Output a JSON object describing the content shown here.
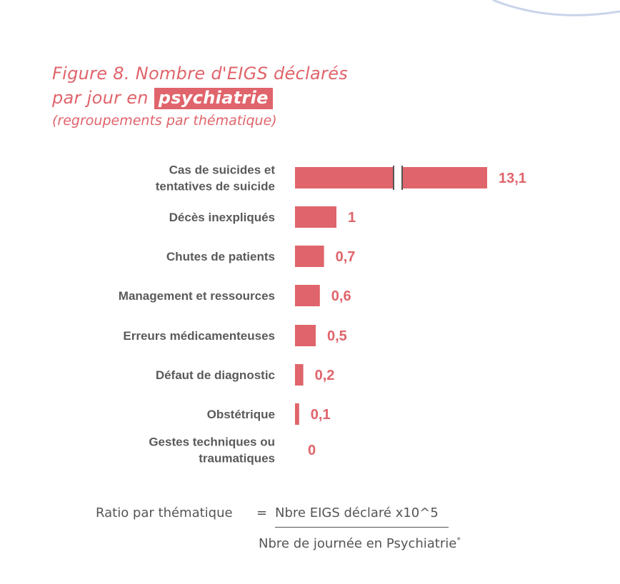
{
  "title": {
    "line1": "Figure 8. Nombre d'EIGS déclarés",
    "line2_prefix": "par jour en",
    "highlight": "psychiatrie",
    "subtitle": "(regroupements par thématique)"
  },
  "colors": {
    "accent": "#e0646b",
    "label_text": "#5a5a5a",
    "break_mark": "#555555",
    "corner_arc": "#c9d4ea"
  },
  "chart_data": {
    "type": "bar",
    "orientation": "horizontal",
    "axis_break": true,
    "categories": [
      [
        "Cas de suicides et",
        "tentatives de suicide"
      ],
      [
        "Décès inexpliqués"
      ],
      [
        "Chutes de patients"
      ],
      [
        "Management et ressources"
      ],
      [
        "Erreurs médicamenteuses"
      ],
      [
        "Défaut de diagnostic"
      ],
      [
        "Obstétrique"
      ],
      [
        "Gestes techniques ou",
        "traumatiques"
      ]
    ],
    "values": [
      13.1,
      1,
      0.7,
      0.6,
      0.5,
      0.2,
      0.1,
      0
    ],
    "value_labels": [
      "13,1",
      "1",
      "0,7",
      "0,6",
      "0,5",
      "0,2",
      "0,1",
      "0"
    ]
  },
  "formula": {
    "left": "Ratio par thématique",
    "equals": "=",
    "numerator": "Nbre EIGS déclaré x10^5",
    "denominator": "Nbre de journée en Psychiatrie",
    "denominator_mark": "*"
  }
}
